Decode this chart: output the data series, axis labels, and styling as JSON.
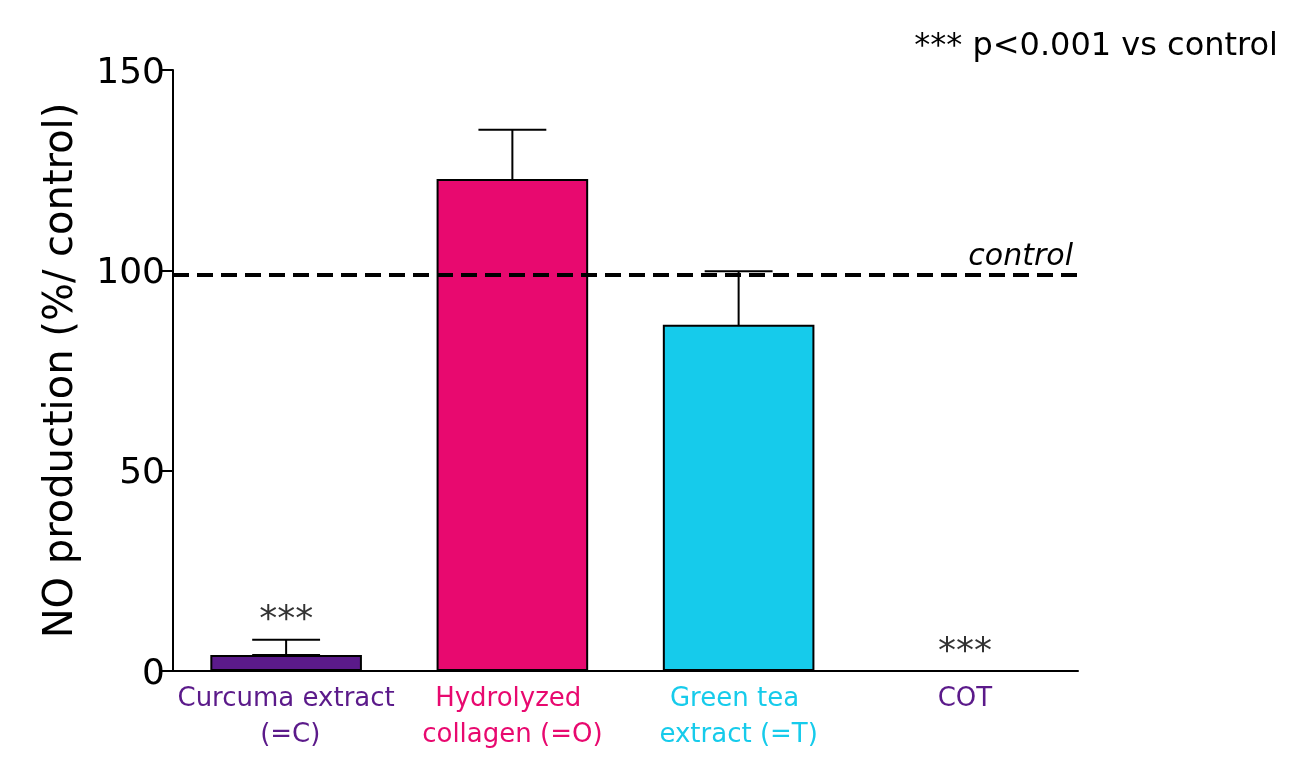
{
  "chart_data": {
    "type": "bar",
    "ylabel": "NO production (%/ control)",
    "categories": [
      "Curcuma extract (=C)",
      "Hydrolyzed collagen (=O)",
      "Green tea extract (=T)",
      "COT"
    ],
    "values": [
      4,
      122.8,
      86.4,
      0
    ],
    "errors": [
      [
        4,
        7.8
      ],
      12.3,
      13.4,
      null
    ],
    "colors": [
      "#5b1a8a",
      "#e8096f",
      "#16cbeb",
      "#5b1a8a"
    ],
    "ylim": [
      0,
      150
    ],
    "yticks": [
      0,
      50,
      100,
      150
    ],
    "grid": false,
    "ref_lines": [
      {
        "axis": "y",
        "value": 99,
        "label": "control",
        "color": "#000000",
        "line_style": "dashed"
      }
    ],
    "annotations": [
      "*** p<0.001 vs control",
      {
        "text": "***",
        "x": "Curcuma extract (=C)",
        "y": 4
      },
      {
        "text": "***",
        "x": "COT",
        "y": 0
      }
    ]
  }
}
